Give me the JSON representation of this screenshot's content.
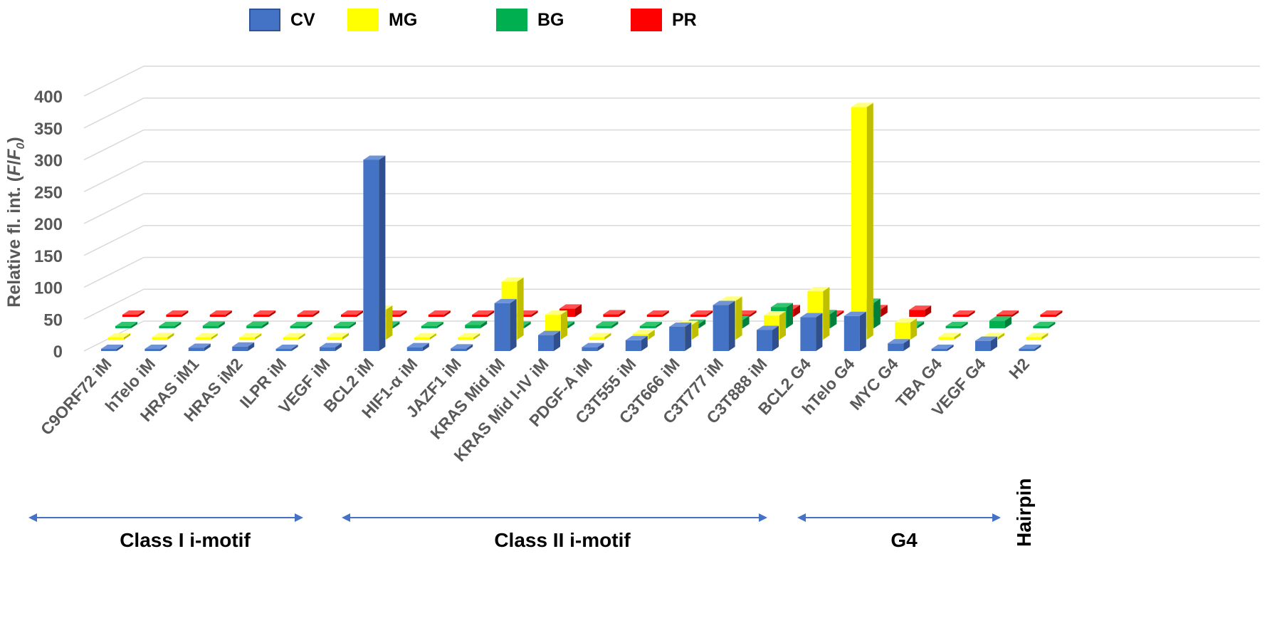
{
  "chart_data": {
    "type": "bar",
    "ylabel": "Relative fl. int. (F/F₀)",
    "ylabel_prefix": "Relative fl. int. (",
    "ylabel_F": "F",
    "ylabel_slash": "/",
    "ylabel_F0": "F",
    "ylabel_sub": "0",
    "ylabel_suffix": ")",
    "ylim": [
      0,
      400
    ],
    "yticks": [
      "0",
      "50",
      "100",
      "150",
      "200",
      "250",
      "300",
      "350",
      "400"
    ],
    "grid": true,
    "legend_position": "top",
    "categories": [
      "C9ORF72 iM",
      "hTelo iM",
      "HRAS iM1",
      "HRAS iM2",
      "ILPR iM",
      "VEGF iM",
      "BCL2 iM",
      "HIF1-α iM",
      "JAZF1 iM",
      "KRAS Mid iM",
      "KRAS Mid I-IV iM",
      "PDGF-A iM",
      "C3T555 iM",
      "C3T666 iM",
      "C3T777 iM",
      "C3T888 iM",
      "BCL2 G4",
      "hTelo G4",
      "MYC G4",
      "TBA G4",
      "VEGF G4",
      "H2"
    ],
    "series": [
      {
        "name": "CV",
        "color": "#4472C4",
        "values": [
          3,
          3,
          5,
          7,
          2,
          6,
          300,
          6,
          4,
          75,
          25,
          6,
          17,
          38,
          72,
          33,
          53,
          55,
          12,
          2,
          16,
          2
        ]
      },
      {
        "name": "MG",
        "color": "#FFFF00",
        "values": [
          3,
          4,
          2,
          3,
          1,
          4,
          47,
          3,
          1,
          91,
          39,
          4,
          9,
          23,
          61,
          38,
          76,
          365,
          27,
          4,
          4,
          4
        ]
      },
      {
        "name": "BG",
        "color": "#00B050",
        "values": [
          3,
          3,
          4,
          4,
          3,
          3,
          4,
          3,
          5,
          4,
          4,
          4,
          3,
          7,
          13,
          33,
          22,
          40,
          4,
          3,
          12,
          2
        ]
      },
      {
        "name": "PR",
        "color": "#FF0000",
        "values": [
          2,
          2,
          2,
          2,
          2,
          2,
          2,
          2,
          2,
          0,
          13,
          4,
          2,
          3,
          1,
          12,
          3,
          12,
          11,
          3,
          1,
          2
        ]
      }
    ],
    "groups": [
      {
        "label": "Class I i-motif",
        "arrow": true
      },
      {
        "label": "Class II i-motif",
        "arrow": true
      },
      {
        "label": "G4",
        "arrow": true
      },
      {
        "label": "Hairpin",
        "arrow": false
      }
    ]
  }
}
